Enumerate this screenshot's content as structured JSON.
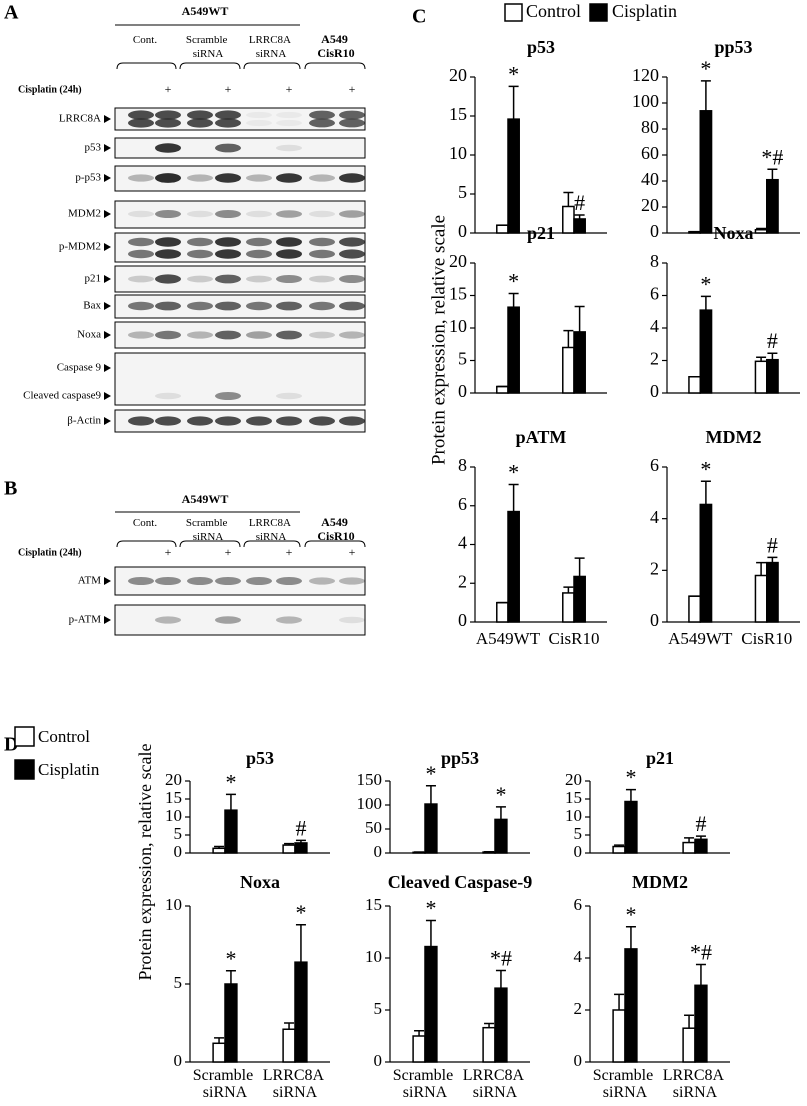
{
  "panel_labels": [
    "A",
    "B",
    "C",
    "D"
  ],
  "blot_a": {
    "group": "A549WT",
    "columns": [
      "Cont.",
      "Scramble siRNA",
      "LRRC8A siRNA"
    ],
    "resistant": "A549 CisR10",
    "treatment": "Cisplatin (24h)",
    "treated_mark": "+",
    "rows": [
      "LRRC8A",
      "p53",
      "p-p53",
      "MDM2",
      "p-MDM2",
      "p21",
      "Bax",
      "Noxa",
      "Caspase 9",
      "Cleaved caspase9",
      "β-Actin"
    ]
  },
  "blot_b": {
    "group": "A549WT",
    "columns": [
      "Cont.",
      "Scramble siRNA",
      "LRRC8A siRNA"
    ],
    "resistant": "A549 CisR10",
    "treatment": "Cisplatin (24h)",
    "treated_mark": "+",
    "rows": [
      "ATM",
      "p-ATM"
    ]
  },
  "y_label_c": "Protein expression, relative scale",
  "y_label_d": "Protein expression, relative scale",
  "chart_data": [
    {
      "type": "bar",
      "title": "p53",
      "categories": [
        null,
        null
      ],
      "ylim": [
        0,
        20
      ],
      "yticks": [
        0,
        5,
        10,
        15,
        20
      ],
      "series": [
        {
          "name": "Control",
          "color": "#ffffff",
          "values": [
            1,
            3.4
          ],
          "errors": [
            0,
            1.8
          ]
        },
        {
          "name": "Cisplatin",
          "color": "#000000",
          "values": [
            14.6,
            1.8
          ],
          "errors": [
            4.2,
            0.5
          ],
          "annotations": [
            "*",
            "#"
          ]
        }
      ]
    },
    {
      "type": "bar",
      "title": "pp53",
      "categories": [
        null,
        null
      ],
      "ylim": [
        0,
        120
      ],
      "yticks": [
        0,
        20,
        40,
        60,
        80,
        100,
        120
      ],
      "series": [
        {
          "name": "Control",
          "color": "#ffffff",
          "values": [
            1,
            2.5
          ],
          "errors": [
            0,
            1
          ]
        },
        {
          "name": "Cisplatin",
          "color": "#000000",
          "values": [
            94,
            41
          ],
          "errors": [
            23,
            8
          ],
          "annotations": [
            "*",
            "*#"
          ]
        }
      ]
    },
    {
      "type": "bar",
      "title": "p21",
      "categories": [
        null,
        null
      ],
      "ylim": [
        0,
        20
      ],
      "yticks": [
        0,
        5,
        10,
        15,
        20
      ],
      "series": [
        {
          "name": "Control",
          "color": "#ffffff",
          "values": [
            1,
            7
          ],
          "errors": [
            0,
            2.6
          ]
        },
        {
          "name": "Cisplatin",
          "color": "#000000",
          "values": [
            13.2,
            9.4
          ],
          "errors": [
            2.1,
            3.9
          ],
          "annotations": [
            "*",
            null
          ]
        }
      ]
    },
    {
      "type": "bar",
      "title": "Noxa",
      "categories": [
        null,
        null
      ],
      "ylim": [
        0,
        8
      ],
      "yticks": [
        0,
        2,
        4,
        6,
        8
      ],
      "series": [
        {
          "name": "Control",
          "color": "#ffffff",
          "values": [
            1,
            1.95
          ],
          "errors": [
            0,
            0.25
          ]
        },
        {
          "name": "Cisplatin",
          "color": "#000000",
          "values": [
            5.1,
            2.05
          ],
          "errors": [
            0.85,
            0.4
          ],
          "annotations": [
            "*",
            "#"
          ]
        }
      ]
    },
    {
      "type": "bar",
      "title": "pATM",
      "categories": [
        "A549WT",
        "CisR10"
      ],
      "ylim": [
        0,
        8
      ],
      "yticks": [
        0,
        2,
        4,
        6,
        8
      ],
      "series": [
        {
          "name": "Control",
          "color": "#ffffff",
          "values": [
            1,
            1.5
          ],
          "errors": [
            0,
            0.3
          ]
        },
        {
          "name": "Cisplatin",
          "color": "#000000",
          "values": [
            5.7,
            2.35
          ],
          "errors": [
            1.4,
            0.95
          ],
          "annotations": [
            "*",
            null
          ]
        }
      ]
    },
    {
      "type": "bar",
      "title": "MDM2",
      "categories": [
        "A549WT",
        "CisR10"
      ],
      "ylim": [
        0,
        6
      ],
      "yticks": [
        0,
        2,
        4,
        6
      ],
      "series": [
        {
          "name": "Control",
          "color": "#ffffff",
          "values": [
            1,
            1.8
          ],
          "errors": [
            0,
            0.5
          ]
        },
        {
          "name": "Cisplatin",
          "color": "#000000",
          "values": [
            4.55,
            2.3
          ],
          "errors": [
            0.9,
            0.2
          ],
          "annotations": [
            "*",
            "#"
          ]
        }
      ]
    },
    {
      "type": "bar",
      "title": "p53",
      "categories": [
        null,
        null
      ],
      "ylim": [
        0,
        20
      ],
      "yticks": [
        0,
        5,
        10,
        15,
        20
      ],
      "series": [
        {
          "name": "Control",
          "color": "#ffffff",
          "values": [
            1.3,
            2.2
          ],
          "errors": [
            0.5,
            0.4
          ]
        },
        {
          "name": "Cisplatin",
          "color": "#000000",
          "values": [
            11.9,
            2.8
          ],
          "errors": [
            4.4,
            0.7
          ],
          "annotations": [
            "*",
            "#"
          ]
        }
      ]
    },
    {
      "type": "bar",
      "title": "pp53",
      "categories": [
        null,
        null
      ],
      "ylim": [
        0,
        150
      ],
      "yticks": [
        0,
        50,
        100,
        150
      ],
      "series": [
        {
          "name": "Control",
          "color": "#ffffff",
          "values": [
            1.5,
            2
          ],
          "errors": [
            0.5,
            0.5
          ]
        },
        {
          "name": "Cisplatin",
          "color": "#000000",
          "values": [
            102,
            70
          ],
          "errors": [
            38,
            26
          ],
          "annotations": [
            "*",
            "*"
          ]
        }
      ]
    },
    {
      "type": "bar",
      "title": "p21",
      "categories": [
        null,
        null
      ],
      "ylim": [
        0,
        20
      ],
      "yticks": [
        0,
        5,
        10,
        15,
        20
      ],
      "series": [
        {
          "name": "Control",
          "color": "#ffffff",
          "values": [
            1.8,
            2.9
          ],
          "errors": [
            0.4,
            1.3
          ]
        },
        {
          "name": "Cisplatin",
          "color": "#000000",
          "values": [
            14.3,
            3.8
          ],
          "errors": [
            3.3,
            0.9
          ],
          "annotations": [
            "*",
            "#"
          ]
        }
      ]
    },
    {
      "type": "bar",
      "title": "Noxa",
      "categories": [
        "Scramble siRNA",
        "LRRC8A siRNA"
      ],
      "ylim": [
        0,
        10
      ],
      "yticks": [
        0,
        5,
        10
      ],
      "series": [
        {
          "name": "Control",
          "color": "#ffffff",
          "values": [
            1.2,
            2.1
          ],
          "errors": [
            0.35,
            0.4
          ]
        },
        {
          "name": "Cisplatin",
          "color": "#000000",
          "values": [
            5,
            6.4
          ],
          "errors": [
            0.85,
            2.4
          ],
          "annotations": [
            "*",
            "*"
          ]
        }
      ]
    },
    {
      "type": "bar",
      "title": "Cleaved Caspase-9",
      "categories": [
        "Scramble siRNA",
        "LRRC8A siRNA"
      ],
      "ylim": [
        0,
        15
      ],
      "yticks": [
        0,
        5,
        10,
        15
      ],
      "series": [
        {
          "name": "Control",
          "color": "#ffffff",
          "values": [
            2.5,
            3.3
          ],
          "errors": [
            0.5,
            0.4
          ]
        },
        {
          "name": "Cisplatin",
          "color": "#000000",
          "values": [
            11.1,
            7.1
          ],
          "errors": [
            2.5,
            1.7
          ],
          "annotations": [
            "*",
            "*#"
          ]
        }
      ]
    },
    {
      "type": "bar",
      "title": "MDM2",
      "categories": [
        "Scramble siRNA",
        "LRRC8A siRNA"
      ],
      "ylim": [
        0,
        6
      ],
      "yticks": [
        0,
        2,
        4,
        6
      ],
      "series": [
        {
          "name": "Control",
          "color": "#ffffff",
          "values": [
            2,
            1.3
          ],
          "errors": [
            0.6,
            0.5
          ]
        },
        {
          "name": "Cisplatin",
          "color": "#000000",
          "values": [
            4.35,
            2.95
          ],
          "errors": [
            0.85,
            0.8
          ],
          "annotations": [
            "*",
            "*#"
          ]
        }
      ]
    }
  ]
}
